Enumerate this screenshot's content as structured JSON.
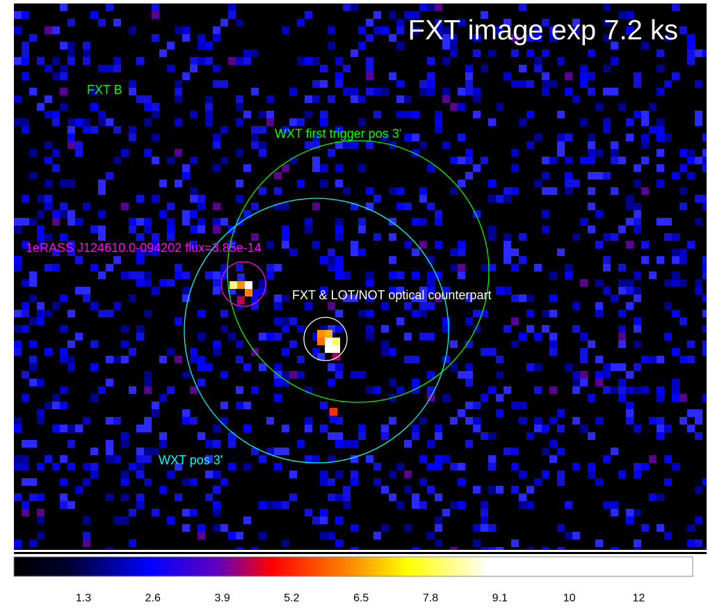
{
  "title": "FXT image  exp 7.2 ks",
  "labels": {
    "fxt_b": "FXT B",
    "wxt_first": "WXT first trigger pos 3'",
    "erass": "1eRASS J124610.0-094202 flux=3.85e-14",
    "counterpart": "FXT & LOT/NOT optical counterpart",
    "wxt_pos": "WXT pos 3'"
  },
  "colorbar": {
    "ticks": [
      1.3,
      2.6,
      3.9,
      5.2,
      6.5,
      7.8,
      9.1,
      10,
      12
    ]
  }
}
